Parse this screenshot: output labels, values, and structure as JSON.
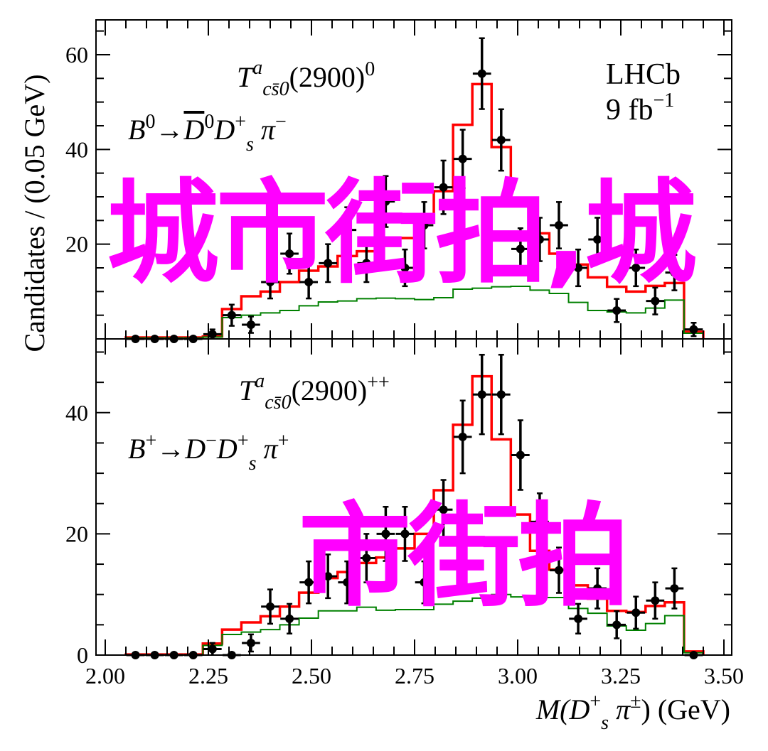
{
  "chart_data": [
    {
      "type": "histogram-with-points",
      "panel": "top",
      "labels": {
        "state": {
          "main": "T",
          "sup": "a",
          "sub": "cs̄0",
          "rest": "(2900)",
          "charge": "0"
        },
        "decay": {
          "b": "B",
          "bsup": "0",
          "arrow": "→",
          "dbar": "D",
          "dbarsup": "0",
          "ds": "D",
          "dssub": "s",
          "dssup": "+",
          "pi": " π",
          "pisup": "−"
        },
        "experiment": "LHCb",
        "lumi": {
          "value": "9 fb",
          "sup": "−1"
        }
      },
      "ylim": [
        0,
        68
      ],
      "yticks": [
        "20",
        "40",
        "60"
      ],
      "bins": {
        "low": 2.05,
        "high": 3.45,
        "n": 30
      },
      "data_points": [
        0,
        0,
        0,
        0,
        1,
        5,
        3,
        12,
        18,
        12,
        16,
        23,
        16,
        29,
        15,
        24,
        32,
        38,
        56,
        42,
        19,
        21,
        24,
        15,
        21,
        6,
        15,
        8,
        14,
        2
      ],
      "series": [
        {
          "name": "total fit",
          "color": "#ff0000",
          "values": [
            0.3,
            0.3,
            0.3,
            0.3,
            0.5,
            6.3,
            9,
            10,
            12,
            14.4,
            15.3,
            17.5,
            18.5,
            20.4,
            21.3,
            25,
            31.2,
            45.2,
            53.8,
            40.5,
            28.8,
            22.3,
            18,
            15.7,
            13,
            11,
            10,
            11.2,
            11.8,
            1.5
          ]
        },
        {
          "name": "component",
          "color": "#008000",
          "values": [
            0.2,
            0.2,
            0.2,
            0.2,
            0.4,
            4.5,
            5,
            5.5,
            6,
            7,
            7.8,
            8,
            8.5,
            8.6,
            8.5,
            8.3,
            8.7,
            10.5,
            10.7,
            11,
            11.1,
            10.3,
            9.6,
            7.7,
            6,
            5.7,
            5.5,
            6.5,
            8.2,
            1.2
          ]
        }
      ]
    },
    {
      "type": "histogram-with-points",
      "panel": "bottom",
      "labels": {
        "state": {
          "main": "T",
          "sup": "a",
          "sub": "cs̄0",
          "rest": "(2900)",
          "charge": "++"
        },
        "decay": {
          "b": "B",
          "bsup": "+",
          "arrow": "→",
          "dbar": "D",
          "dbarsup": "−",
          "ds": "D",
          "dssub": "s",
          "dssup": "+",
          "pi": " π",
          "pisup": "+"
        }
      },
      "ylim": [
        0,
        52
      ],
      "yticks": [
        "0",
        "20",
        "40"
      ],
      "bins": {
        "low": 2.05,
        "high": 3.45,
        "n": 30
      },
      "data_points": [
        0,
        0,
        0,
        0,
        1,
        0,
        2,
        8,
        6,
        12,
        13,
        12,
        16,
        20,
        20,
        12,
        24,
        36,
        43,
        43,
        33,
        22,
        14,
        6,
        11,
        5,
        7,
        9,
        11,
        0
      ],
      "series": [
        {
          "name": "total fit",
          "color": "#ff0000",
          "values": [
            0.1,
            0.1,
            0.1,
            0.1,
            1.9,
            4.2,
            5.4,
            6.4,
            8,
            10.3,
            12.7,
            13.7,
            15.2,
            16.1,
            17.6,
            20,
            27.2,
            38,
            46,
            35.6,
            23.2,
            17.2,
            14.1,
            11.5,
            9.3,
            7.3,
            7.1,
            8.1,
            8.7,
            0.6
          ]
        },
        {
          "name": "component",
          "color": "#008000",
          "values": [
            0.05,
            0.05,
            0.05,
            0.05,
            1.6,
            3.4,
            3.8,
            4.2,
            5,
            6.1,
            7.3,
            7.3,
            7.9,
            7.4,
            7.5,
            7.5,
            8.4,
            8.9,
            9.4,
            10,
            9.6,
            9.5,
            9.5,
            7.7,
            6.9,
            4.8,
            4.1,
            5.2,
            6.5,
            0.4
          ]
        }
      ]
    }
  ],
  "axes": {
    "xlim": [
      2.0,
      3.5
    ],
    "xticks": [
      "2.00",
      "2.25",
      "2.50",
      "2.75",
      "3.00",
      "3.25",
      "3.50"
    ],
    "ylabel": "Candidates / (0.05 GeV)",
    "xlabel": {
      "m": "M",
      "open": "(D",
      "sub": "s",
      "sup": "+",
      "pi": " π",
      "pisup": "±",
      "close": ") (GeV)"
    }
  },
  "overlay": {
    "line1": "城市街拍,城",
    "line2": "市街拍",
    "color": "#ff00ff"
  }
}
